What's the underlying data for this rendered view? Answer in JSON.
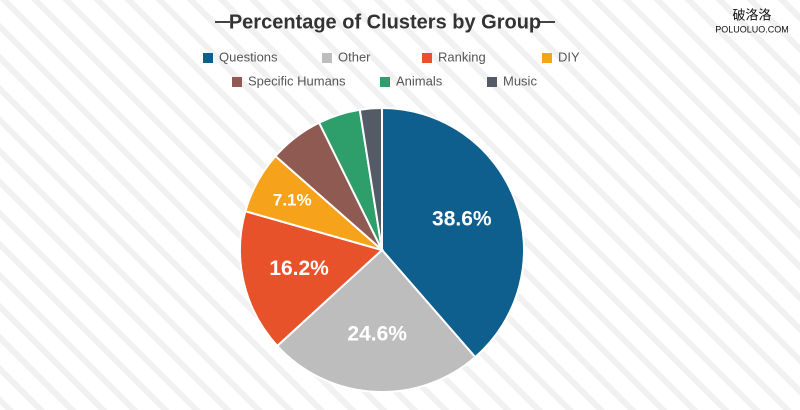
{
  "chart_data": {
    "type": "pie",
    "title": "Percentage of Clusters by Group",
    "categories": [
      "Questions",
      "Other",
      "Ranking",
      "DIY",
      "Specific Humans",
      "Animals",
      "Music"
    ],
    "values": [
      38.6,
      24.6,
      16.2,
      7.1,
      6.2,
      4.8,
      2.5
    ],
    "value_labels": [
      "38.6%",
      "24.6%",
      "16.2%",
      "7.1%",
      null,
      null,
      null
    ],
    "colors": [
      "#0e5f8e",
      "#bdbdbd",
      "#e8522a",
      "#f7a21b",
      "#8e5a52",
      "#2e9e6b",
      "#555b66"
    ],
    "legend": "top"
  },
  "watermark": {
    "text": "破洛洛",
    "url": "POLUOLUO.COM"
  }
}
